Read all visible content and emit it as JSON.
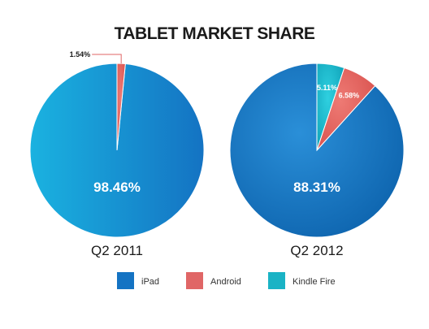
{
  "chart_data": {
    "type": "pie",
    "title": "TABLET MARKET SHARE",
    "legend": {
      "placement": "bottom",
      "entries": [
        {
          "name": "iPad",
          "color": "#1473c3"
        },
        {
          "name": "Android",
          "color": "#e06666"
        },
        {
          "name": "Kindle Fire",
          "color": "#1ab3c5"
        }
      ]
    },
    "charts": [
      {
        "caption": "Q2 2011",
        "slices": [
          {
            "name": "iPad",
            "value": 98.46,
            "label": "98.46%"
          },
          {
            "name": "Android",
            "value": 1.54,
            "label": "1.54%"
          }
        ]
      },
      {
        "caption": "Q2 2012",
        "slices": [
          {
            "name": "iPad",
            "value": 88.31,
            "label": "88.31%"
          },
          {
            "name": "Kindle Fire",
            "value": 5.11,
            "label": "5.11%"
          },
          {
            "name": "Android",
            "value": 6.58,
            "label": "6.58%"
          }
        ]
      }
    ]
  }
}
